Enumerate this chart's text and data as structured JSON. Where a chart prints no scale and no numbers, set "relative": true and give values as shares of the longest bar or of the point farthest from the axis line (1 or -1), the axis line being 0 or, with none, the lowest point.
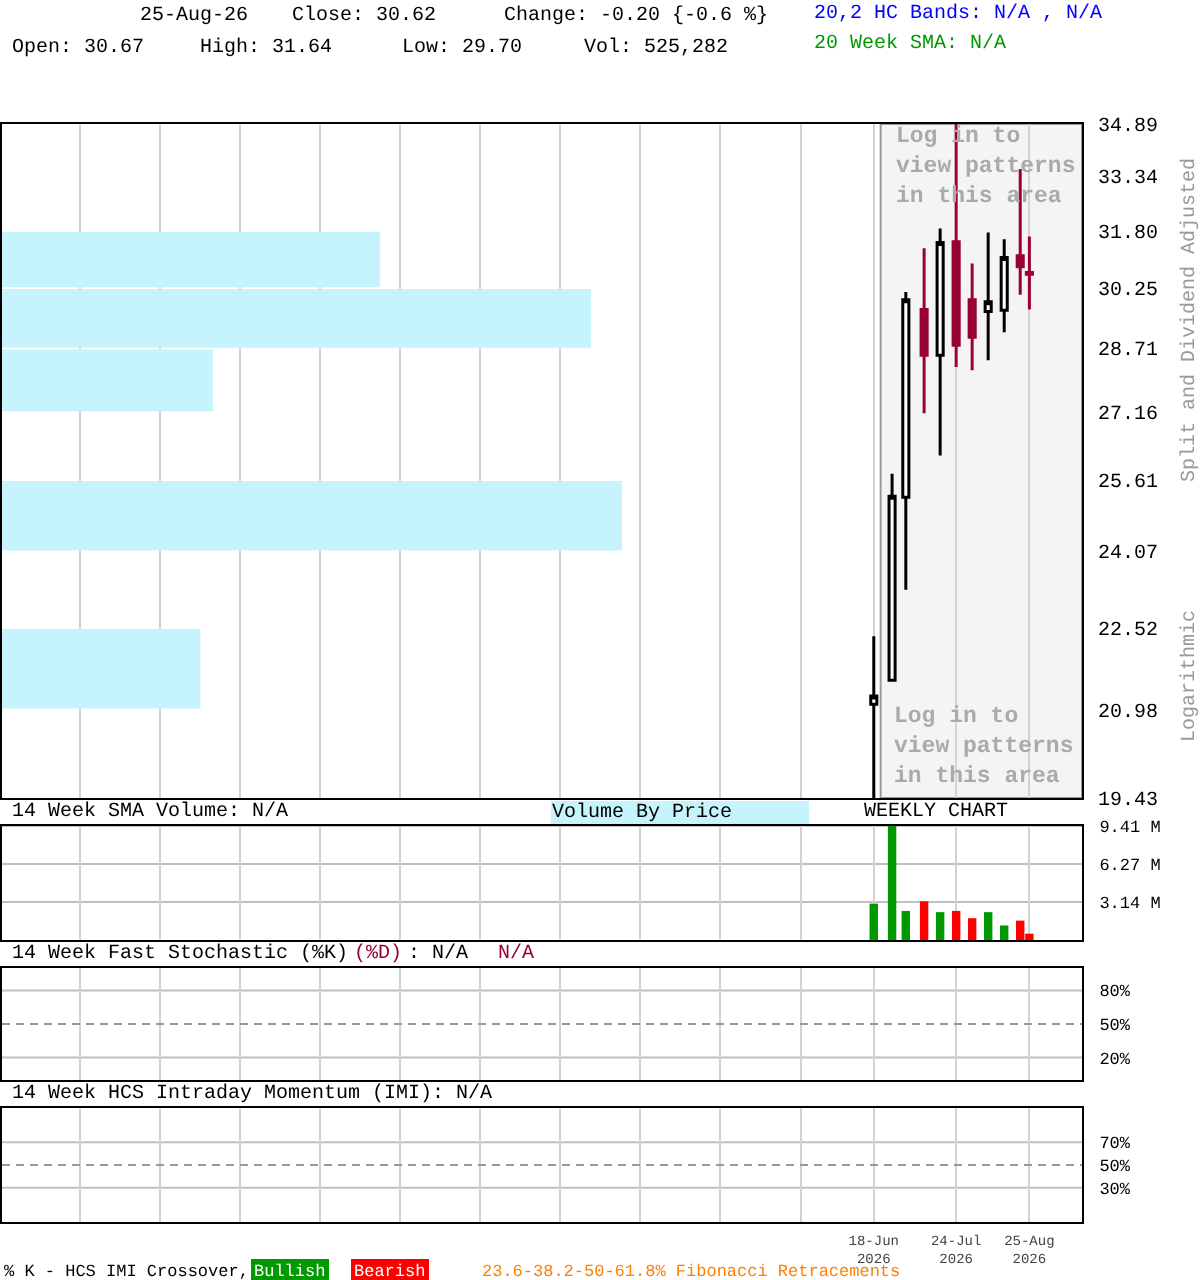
{
  "chart_data": [
    {
      "type": "candlestick",
      "ylabel": "Split and Dividend Adjusted",
      "annotations": [
        "25-Aug-26",
        "Close: 30.62",
        "Change: -0.20 {-0.6 %}",
        "Open: 30.67",
        "High: 31.64",
        "Low: 29.70",
        "Vol: 525,282",
        "20,2 HC Bands: N/A , N/A",
        "20 Week SMA: N/A",
        "Logarithmic",
        "Log in to\nview patterns\nin this area"
      ],
      "x": [
        "2026-06-18",
        "2026-06-26",
        "2026-07-02",
        "2026-07-10",
        "2026-07-17",
        "2026-07-24",
        "2026-07-31",
        "2026-08-07",
        "2026-08-14",
        "2026-08-21",
        "2026-08-25"
      ],
      "ohlc": [
        [
          21.08,
          22.36,
          19.43,
          21.23
        ],
        [
          21.52,
          25.75,
          21.52,
          25.25
        ],
        [
          25.23,
          30.15,
          23.28,
          29.95
        ],
        [
          29.7,
          31.32,
          27.14,
          28.54
        ],
        [
          28.54,
          31.86,
          26.16,
          31.48
        ],
        [
          31.5,
          34.89,
          28.25,
          28.79
        ],
        [
          29.95,
          30.91,
          28.17,
          28.99
        ],
        [
          29.65,
          31.75,
          28.42,
          29.9
        ],
        [
          29.68,
          31.57,
          29.12,
          31.07
        ],
        [
          31.12,
          33.55,
          30.08,
          30.82
        ],
        [
          30.67,
          31.64,
          29.7,
          30.62
        ]
      ],
      "colors": [
        "#ffffff",
        "#ffffff",
        "#ffffff",
        "#990033",
        "#ffffff",
        "#990033",
        "#990033",
        "#ffffff",
        "#ffffff",
        "#990033",
        "#990033"
      ],
      "xlim": [
        "2025-06-02",
        "2026-09-17"
      ],
      "xticks": [
        {
          "value": "2025-07-06",
          "label": null
        },
        {
          "value": "2025-08-10",
          "label": null
        },
        {
          "value": "2025-09-14",
          "label": null
        },
        {
          "value": "2025-10-19",
          "label": null
        },
        {
          "value": "2025-11-23",
          "label": null
        },
        {
          "value": "2025-12-28",
          "label": null
        },
        {
          "value": "2026-02-01",
          "label": null
        },
        {
          "value": "2026-03-08",
          "label": null
        },
        {
          "value": "2026-04-12",
          "label": null
        },
        {
          "value": "2026-05-17",
          "label": null
        },
        {
          "value": "2026-06-18",
          "label": null
        },
        {
          "value": "2026-07-24",
          "label": null
        },
        {
          "value": "2026-08-25",
          "label": null
        }
      ],
      "ylim": [
        19.43,
        34.89
      ],
      "yticks": [
        34.89,
        33.34,
        {
          "value": 31.8,
          "label": "31.80"
        },
        30.25,
        28.71,
        27.16,
        25.61,
        24.07,
        22.52,
        20.98,
        19.43
      ],
      "log": "y",
      "grid": true,
      "tick_labels": "y",
      "bands": [
        {
          "axis": "x",
          "from": "2026-06-21",
          "to": "2026-09-17",
          "label": "Log in to\nview patterns\nin this area",
          "color": "#f4f4f4"
        }
      ]
    },
    {
      "type": "bar",
      "orientation": "horizontal",
      "relative": true,
      "title": "Volume By Price",
      "x": [
        31.025,
        29.48,
        27.935,
        24.84,
        21.75
      ],
      "values": [
        0.61,
        0.95,
        0.34,
        1,
        0.32
      ],
      "color": "#c6f4fc",
      "ylim": [
        19.43,
        34.89
      ],
      "log": "y",
      "tick_labels": false
    },
    {
      "type": "bar",
      "title": "14 Week SMA Volume: N/A",
      "annotations": [
        "WEEKLY CHART"
      ],
      "x": [
        "2026-06-18",
        "2026-06-26",
        "2026-07-02",
        "2026-07-10",
        "2026-07-17",
        "2026-07-24",
        "2026-07-31",
        "2026-08-07",
        "2026-08-14",
        "2026-08-21",
        "2026-08-25"
      ],
      "values": [
        3.0,
        9.4,
        2.4,
        3.2,
        2.3,
        2.4,
        1.8,
        2.3,
        1.2,
        1.6,
        0.525282
      ],
      "colors": [
        "#009900",
        "#009900",
        "#009900",
        "#ff0000",
        "#009900",
        "#ff0000",
        "#ff0000",
        "#009900",
        "#009900",
        "#ff0000",
        "#ff0000"
      ],
      "xlim": [
        "2025-06-02",
        "2026-09-17"
      ],
      "xticks": [
        {
          "value": "2025-07-06",
          "label": null
        },
        {
          "value": "2025-08-10",
          "label": null
        },
        {
          "value": "2025-09-14",
          "label": null
        },
        {
          "value": "2025-10-19",
          "label": null
        },
        {
          "value": "2025-11-23",
          "label": null
        },
        {
          "value": "2025-12-28",
          "label": null
        },
        {
          "value": "2026-02-01",
          "label": null
        },
        {
          "value": "2026-03-08",
          "label": null
        },
        {
          "value": "2026-04-12",
          "label": null
        },
        {
          "value": "2026-05-17",
          "label": null
        },
        {
          "value": "2026-06-18",
          "label": null
        },
        {
          "value": "2026-07-24",
          "label": null
        },
        {
          "value": "2026-08-25",
          "label": null
        }
      ],
      "ylim": [
        0,
        9.41
      ],
      "yticks": [
        {
          "value": 9.41,
          "label": "9.41 M"
        },
        {
          "value": 6.27,
          "label": "6.27 M"
        },
        {
          "value": 3.14,
          "label": "3.14 M"
        }
      ],
      "grid": true,
      "tick_labels": "y"
    },
    {
      "type": "line",
      "title": "14 Week Fast Stochastic (%K)",
      "annotations": [
        "(%D)",
        ": N/A",
        "N/A"
      ],
      "xlim": [
        "2025-06-02",
        "2026-09-17"
      ],
      "xticks": [
        {
          "value": "2025-07-06",
          "label": null
        },
        {
          "value": "2025-08-10",
          "label": null
        },
        {
          "value": "2025-09-14",
          "label": null
        },
        {
          "value": "2025-10-19",
          "label": null
        },
        {
          "value": "2025-11-23",
          "label": null
        },
        {
          "value": "2025-12-28",
          "label": null
        },
        {
          "value": "2026-02-01",
          "label": null
        },
        {
          "value": "2026-03-08",
          "label": null
        },
        {
          "value": "2026-04-12",
          "label": null
        },
        {
          "value": "2026-05-17",
          "label": null
        },
        {
          "value": "2026-06-18",
          "label": null
        },
        {
          "value": "2026-07-24",
          "label": null
        },
        {
          "value": "2026-08-25",
          "label": null
        }
      ],
      "ylim": [
        0,
        100
      ],
      "yticks": [
        {
          "value": 80,
          "label": "80%"
        },
        {
          "value": 50,
          "label": "50%"
        },
        {
          "value": 20,
          "label": "20%"
        }
      ],
      "grid": true,
      "tick_labels": "y",
      "ref_lines": [
        {
          "axis": "y",
          "value": 50,
          "line_style": "dashed",
          "color": "#999999"
        }
      ]
    },
    {
      "type": "line",
      "title": "14 Week HCS Intraday Momentum (IMI): N/A",
      "annotations": [
        "% K - HCS IMI Crossover,",
        "Bullish",
        "Bearish",
        "23.6-38.2-50-61.8% Fibonacci Retracements"
      ],
      "xlim": [
        "2025-06-02",
        "2026-09-17"
      ],
      "xticks": [
        {
          "value": "2025-07-06",
          "label": null
        },
        {
          "value": "2025-08-10",
          "label": null
        },
        {
          "value": "2025-09-14",
          "label": null
        },
        {
          "value": "2025-10-19",
          "label": null
        },
        {
          "value": "2025-11-23",
          "label": null
        },
        {
          "value": "2025-12-28",
          "label": null
        },
        {
          "value": "2026-02-01",
          "label": null
        },
        {
          "value": "2026-03-08",
          "label": null
        },
        {
          "value": "2026-04-12",
          "label": null
        },
        {
          "value": "2026-05-17",
          "label": null
        },
        {
          "value": "2026-06-18",
          "label": "18-Jun\n2026"
        },
        {
          "value": "2026-07-24",
          "label": "24-Jul\n2026"
        },
        {
          "value": "2026-08-25",
          "label": "25-Aug\n2026"
        }
      ],
      "ylim": [
        0,
        100
      ],
      "yticks": [
        {
          "value": 70,
          "label": "70%"
        },
        {
          "value": 50,
          "label": "50%"
        },
        {
          "value": 30,
          "label": "30%"
        }
      ],
      "grid": true,
      "ref_lines": [
        {
          "axis": "y",
          "value": 50,
          "line_style": "dashed",
          "color": "#999999"
        }
      ]
    }
  ]
}
